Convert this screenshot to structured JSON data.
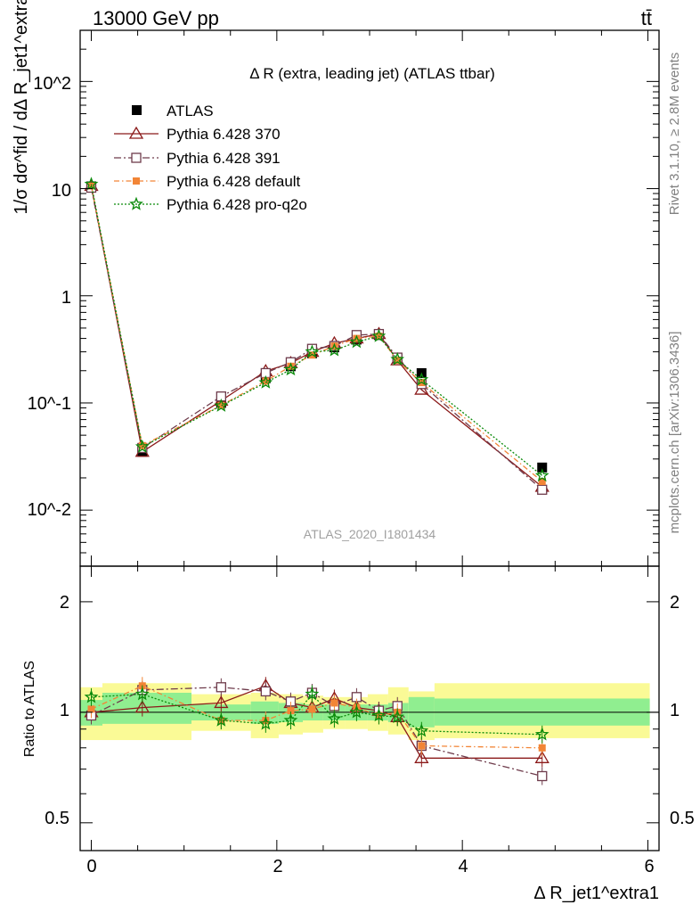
{
  "header": {
    "energy_label": "13000 GeV pp",
    "process_label": "tt̄"
  },
  "side_labels": {
    "rivet": "Rivet 3.1.10, ≥ 2.8M events",
    "mcplots": "mcplots.cern.ch [arXiv:1306.3436]"
  },
  "watermark": "ATLAS_2020_I1801434",
  "colors": {
    "ATLAS": "#000000",
    "Pythia 6.428 370": "#8b1a1a",
    "Pythia 6.428 391": "#6e3b4b",
    "Pythia 6.428 default": "#f28536",
    "Pythia 6.428 pro-q2o": "#0a8a0a",
    "band_inner": "#90ee90",
    "band_outer": "#fafa96"
  },
  "chart_data": [
    {
      "id": "main",
      "type": "line",
      "title": "Δ R (extra, leading jet) (ATLAS ttbar)",
      "ylabel": "1/σ dσ^fid / dΔ R_jet1^extra1",
      "yscale": "log",
      "ylim": [
        0.003,
        300
      ],
      "xlim": [
        -0.12,
        6.12
      ],
      "ytick_labels": [
        "10^-2",
        "10^-1",
        "1",
        "10",
        "10^2"
      ],
      "legend": "top-left",
      "x": [
        0.0,
        0.55,
        1.4,
        1.88,
        2.15,
        2.38,
        2.62,
        2.86,
        3.1,
        3.3,
        3.56,
        4.86
      ],
      "series": [
        {
          "name": "ATLAS",
          "marker": "square",
          "values": [
            10.5,
            0.035,
            0.1,
            0.17,
            0.22,
            0.29,
            0.33,
            0.39,
            0.43,
            0.26,
            0.19,
            0.025
          ]
        },
        {
          "name": "Pythia 6.428 370",
          "marker": "triangle",
          "dash": "",
          "values": [
            10.6,
            0.035,
            0.105,
            0.198,
            0.235,
            0.3,
            0.36,
            0.4,
            0.44,
            0.25,
            0.133,
            0.0165
          ]
        },
        {
          "name": "Pythia 6.428 391",
          "marker": "open-square",
          "dash": "8 3 2 3",
          "values": [
            10.2,
            0.038,
            0.115,
            0.19,
            0.24,
            0.32,
            0.34,
            0.43,
            0.44,
            0.265,
            0.15,
            0.0155
          ]
        },
        {
          "name": "Pythia 6.428 default",
          "marker": "filled-square",
          "dash": "6 3 1.5 3",
          "values": [
            10.6,
            0.04,
            0.095,
            0.16,
            0.22,
            0.28,
            0.34,
            0.4,
            0.42,
            0.25,
            0.155,
            0.0185
          ]
        },
        {
          "name": "Pythia 6.428 pro-q2o",
          "marker": "star",
          "dash": "2 2",
          "values": [
            11.0,
            0.039,
            0.094,
            0.155,
            0.205,
            0.3,
            0.31,
            0.37,
            0.42,
            0.255,
            0.165,
            0.021
          ]
        }
      ]
    },
    {
      "id": "ratio",
      "type": "line",
      "ylabel": "Ratio to ATLAS",
      "yscale": "log",
      "ylim": [
        0.42,
        2.5
      ],
      "xlim": [
        -0.12,
        6.12
      ],
      "xlabel": "Δ R_jet1^extra1",
      "xtick_labels": [
        "0",
        "2",
        "4",
        "6"
      ],
      "ytick_labels": [
        "0.5",
        "1",
        "2"
      ],
      "x": [
        0.0,
        0.55,
        1.4,
        1.88,
        2.15,
        2.38,
        2.62,
        2.86,
        3.1,
        3.3,
        3.56,
        4.86
      ],
      "series": [
        {
          "name": "Pythia 6.428 370",
          "values": [
            1.0,
            1.03,
            1.06,
            1.18,
            1.06,
            1.03,
            1.09,
            1.03,
            1.01,
            0.97,
            0.75,
            0.75
          ]
        },
        {
          "name": "Pythia 6.428 391",
          "values": [
            0.98,
            1.15,
            1.17,
            1.14,
            1.07,
            1.13,
            1.04,
            1.1,
            1.01,
            1.04,
            0.81,
            0.67
          ]
        },
        {
          "name": "Pythia 6.428 default",
          "values": [
            1.02,
            1.18,
            0.95,
            0.95,
            1.01,
            1.02,
            1.06,
            1.03,
            0.98,
            1.0,
            0.81,
            0.8
          ]
        },
        {
          "name": "Pythia 6.428 pro-q2o",
          "values": [
            1.1,
            1.12,
            0.95,
            0.93,
            0.95,
            1.12,
            0.96,
            1.0,
            0.98,
            0.97,
            0.89,
            0.87
          ]
        }
      ],
      "band_edges": [
        -0.12,
        0.12,
        1.08,
        1.72,
        2.02,
        2.28,
        2.5,
        2.74,
        2.98,
        3.2,
        3.42,
        3.7,
        6.02
      ],
      "band_inner": [
        [
          0.92,
          1.08
        ],
        [
          0.93,
          1.13
        ],
        [
          0.95,
          1.05
        ],
        [
          0.93,
          1.07
        ],
        [
          0.94,
          1.06
        ],
        [
          0.95,
          1.05
        ],
        [
          0.95,
          1.05
        ],
        [
          0.95,
          1.05
        ],
        [
          0.95,
          1.05
        ],
        [
          0.94,
          1.06
        ],
        [
          0.91,
          1.1
        ],
        [
          0.92,
          1.09
        ]
      ],
      "band_outer": [
        [
          0.84,
          1.17
        ],
        [
          0.84,
          1.2
        ],
        [
          0.89,
          1.12
        ],
        [
          0.85,
          1.13
        ],
        [
          0.87,
          1.12
        ],
        [
          0.88,
          1.11
        ],
        [
          0.9,
          1.1
        ],
        [
          0.9,
          1.1
        ],
        [
          0.89,
          1.12
        ],
        [
          0.87,
          1.17
        ],
        [
          0.84,
          1.14
        ],
        [
          0.85,
          1.2
        ]
      ]
    }
  ]
}
